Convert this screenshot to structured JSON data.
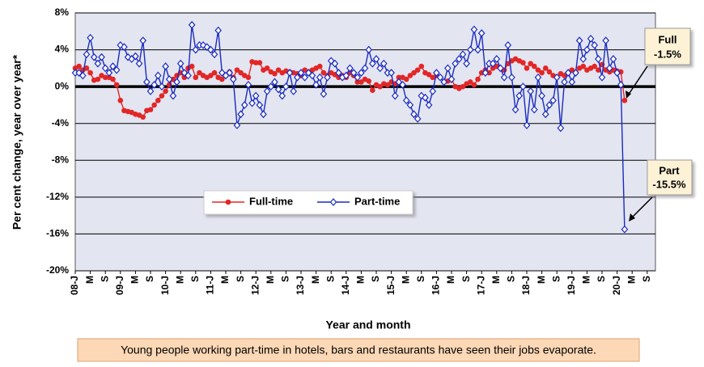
{
  "chart_data": {
    "type": "line",
    "x_label": "Year and month",
    "y_label": "Per cent change, year over year*",
    "caption": "Young people working part-time in hotels, bars and restaurants have seen their jobs evaporate.",
    "categories": [
      "08-J",
      null,
      null,
      null,
      "M",
      null,
      null,
      null,
      "S",
      null,
      null,
      null,
      "09-J",
      null,
      null,
      null,
      "M",
      null,
      null,
      null,
      "S",
      null,
      null,
      null,
      "10-J",
      null,
      null,
      null,
      "M",
      null,
      null,
      null,
      "S",
      null,
      null,
      null,
      "11-J",
      null,
      null,
      null,
      "M",
      null,
      null,
      null,
      "S",
      null,
      null,
      null,
      "12-J",
      null,
      null,
      null,
      "M",
      null,
      null,
      null,
      "S",
      null,
      null,
      null,
      "13-J",
      null,
      null,
      null,
      "M",
      null,
      null,
      null,
      "S",
      null,
      null,
      null,
      "14-J",
      null,
      null,
      null,
      "M",
      null,
      null,
      null,
      "S",
      null,
      null,
      null,
      "15-J",
      null,
      null,
      null,
      "M",
      null,
      null,
      null,
      "S",
      null,
      null,
      null,
      "16-J",
      null,
      null,
      null,
      "M",
      null,
      null,
      null,
      "S",
      null,
      null,
      null,
      "17-J",
      null,
      null,
      null,
      "M",
      null,
      null,
      null,
      "S",
      null,
      null,
      null,
      "18-J",
      null,
      null,
      null,
      "M",
      null,
      null,
      null,
      "S",
      null,
      null,
      null,
      "19-J",
      null,
      null,
      null,
      "M",
      null,
      null,
      null,
      "S",
      null,
      null,
      null,
      "20-J",
      null,
      null,
      null,
      "M",
      null,
      null,
      null,
      "S"
    ],
    "series": [
      {
        "name": "Full-time",
        "color": "#e32626",
        "marker": "circle",
        "values": [
          2.0,
          2.2,
          1.8,
          2.0,
          1.5,
          0.7,
          0.8,
          1.2,
          1.0,
          1.0,
          0.8,
          0.2,
          -1.5,
          -2.6,
          -2.7,
          -2.8,
          -3.0,
          -3.1,
          -3.3,
          -2.6,
          -2.5,
          -2.0,
          -1.5,
          -1.0,
          -0.5,
          0.2,
          0.8,
          1.2,
          1.5,
          1.0,
          2.0,
          2.2,
          1.0,
          1.5,
          1.2,
          1.0,
          1.2,
          1.5,
          1.0,
          0.8,
          1.2,
          1.6,
          1.0,
          1.8,
          1.5,
          1.2,
          1.0,
          2.7,
          2.6,
          2.6,
          1.8,
          2.0,
          1.6,
          1.4,
          1.8,
          1.5,
          1.7,
          1.6,
          1.5,
          1.4,
          1.2,
          1.8,
          1.6,
          1.8,
          2.0,
          2.2,
          1.5,
          1.2,
          1.5,
          1.3,
          1.0,
          1.2,
          1.0,
          1.5,
          1.2,
          0.5,
          0.5,
          0.8,
          0.6,
          -0.4,
          0.2,
          0.0,
          0.3,
          0.2,
          0.5,
          0.3,
          1.0,
          1.0,
          0.8,
          1.2,
          1.5,
          1.8,
          2.2,
          1.5,
          1.3,
          1.0,
          1.2,
          1.0,
          0.5,
          0.6,
          0.8,
          0.0,
          -0.2,
          0.0,
          0.3,
          0.5,
          0.2,
          0.8,
          1.5,
          1.8,
          1.5,
          2.0,
          2.2,
          2.0,
          1.8,
          2.5,
          2.8,
          3.0,
          2.8,
          2.6,
          2.0,
          2.5,
          2.2,
          1.8,
          1.5,
          2.0,
          1.6,
          1.2,
          1.0,
          1.4,
          1.2,
          1.5,
          1.8,
          1.5,
          2.0,
          2.2,
          1.8,
          2.0,
          2.2,
          1.8,
          2.4,
          1.8,
          1.6,
          1.8,
          1.7,
          1.6,
          -1.5,
          null,
          null,
          null,
          null,
          null,
          null
        ]
      },
      {
        "name": "Part-time",
        "color": "#1a2bc0",
        "marker": "diamond",
        "values": [
          1.5,
          1.5,
          1.2,
          3.5,
          5.3,
          3.2,
          2.5,
          3.2,
          2.0,
          1.5,
          2.2,
          1.8,
          4.5,
          4.3,
          3.2,
          3.0,
          3.3,
          2.5,
          5.0,
          0.5,
          -0.5,
          0.2,
          1.2,
          0.0,
          2.2,
          0.8,
          -1.0,
          0.5,
          2.5,
          1.5,
          1.2,
          6.7,
          4.0,
          4.5,
          4.5,
          4.3,
          4.0,
          3.5,
          6.1,
          1.5,
          1.2,
          1.5,
          0.8,
          -4.2,
          -3.0,
          -2.0,
          0.2,
          -1.8,
          -1.0,
          -2.0,
          -3.0,
          -0.5,
          0.0,
          0.5,
          -0.3,
          -1.0,
          0.0,
          1.5,
          -0.5,
          1.0,
          1.5,
          1.0,
          1.5,
          1.2,
          0.2,
          1.0,
          -0.8,
          1.0,
          2.8,
          2.5,
          1.5,
          1.0,
          1.2,
          2.0,
          1.5,
          1.0,
          1.5,
          2.0,
          4.0,
          2.5,
          3.0,
          2.0,
          2.5,
          1.5,
          1.5,
          -1.0,
          0.5,
          0.2,
          -1.5,
          -2.0,
          -3.0,
          -3.5,
          -1.0,
          -1.2,
          -2.0,
          -0.5,
          1.5,
          1.0,
          0.5,
          2.0,
          0.8,
          2.5,
          3.0,
          3.5,
          2.5,
          4.0,
          6.2,
          4.0,
          5.8,
          1.5,
          2.5,
          2.5,
          3.0,
          2.0,
          1.0,
          4.5,
          1.0,
          -2.5,
          -1.0,
          0.0,
          -4.2,
          -0.5,
          -2.5,
          1.0,
          -1.0,
          -3.0,
          -2.0,
          -1.5,
          1.0,
          -4.5,
          0.5,
          1.5,
          0.5,
          1.5,
          5.0,
          3.0,
          4.0,
          5.2,
          4.5,
          3.0,
          1.0,
          5.0,
          2.0,
          3.0,
          1.5,
          0.2,
          -15.5,
          null,
          null,
          null,
          null,
          null,
          null
        ]
      }
    ],
    "ylim": [
      -20,
      8
    ],
    "yticks": [
      {
        "value": -20,
        "label": "-20%"
      },
      {
        "value": -16,
        "label": "-16%"
      },
      {
        "value": -12,
        "label": "-12%"
      },
      {
        "value": -8,
        "label": "-8%"
      },
      {
        "value": -4,
        "label": "-4%"
      },
      {
        "value": 0,
        "label": "0%"
      },
      {
        "value": 4,
        "label": "4%"
      },
      {
        "value": 8,
        "label": "8%"
      }
    ],
    "grid": true,
    "annotations": [
      {
        "label": "Full",
        "value_label": "-1.5%"
      },
      {
        "label": "Part",
        "value_label": "-15.5%"
      }
    ]
  }
}
